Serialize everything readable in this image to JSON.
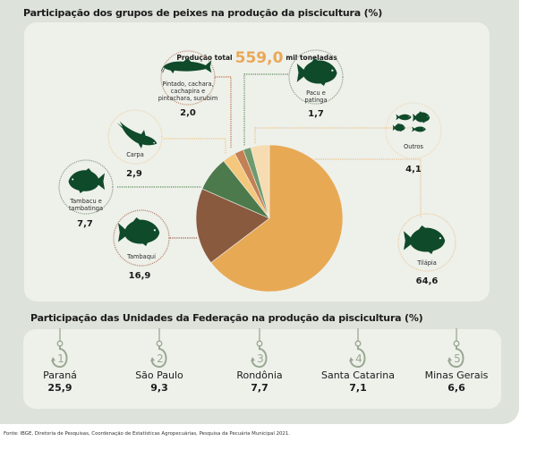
{
  "chart_data": [
    {
      "type": "pie",
      "title": "Participação dos grupos de peixes na produção da piscicultura (%)",
      "total_label": "Produção total",
      "total_value": "559,0",
      "total_unit": "mil toneladas",
      "slices": [
        {
          "name": "Tilápia",
          "value": 64.6,
          "value_label": "64,6",
          "color": "#e8a955",
          "icon": "tilapia-fish-icon"
        },
        {
          "name": "Tambaqui",
          "value": 16.9,
          "value_label": "16,9",
          "color": "#8a5a3e",
          "icon": "tambaqui-fish-icon"
        },
        {
          "name": "Tambacu e tambatinga",
          "value": 7.7,
          "value_label": "7,7",
          "color": "#4d7a4c",
          "icon": "tambacu-fish-icon"
        },
        {
          "name": "Carpa",
          "value": 2.9,
          "value_label": "2,9",
          "color": "#f4c77c",
          "icon": "carp-fish-icon"
        },
        {
          "name": "Pintado, cachara, cachapira e pintachara, surubim",
          "value": 2.0,
          "value_label": "2,0",
          "color": "#c47f54",
          "icon": "catfish-icon"
        },
        {
          "name": "Pacu e patinga",
          "value": 1.7,
          "value_label": "1,7",
          "color": "#6f9a6c",
          "icon": "pacu-fish-icon"
        },
        {
          "name": "Outros",
          "value": 4.1,
          "value_label": "4,1",
          "color": "#f6dcb0",
          "icon": "other-fish-icon"
        }
      ]
    },
    {
      "type": "table",
      "title": "Participação das Unidades da Federação na produção da piscicultura (%)",
      "rows": [
        {
          "rank": "1",
          "name": "Paraná",
          "value": "25,9"
        },
        {
          "rank": "2",
          "name": "São Paulo",
          "value": "9,3"
        },
        {
          "rank": "3",
          "name": "Rondônia",
          "value": "7,7"
        },
        {
          "rank": "4",
          "name": "Santa Catarina",
          "value": "7,1"
        },
        {
          "rank": "5",
          "name": "Minas Gerais",
          "value": "6,6"
        }
      ]
    }
  ],
  "colors": {
    "panel": "#dde2da",
    "inner_panel": "#eef0ea",
    "accent": "#e9a857",
    "fish": "#0f4a2a",
    "hook": "#9aa893"
  },
  "footer": "Fonte: IBGE, Diretoria de Pesquisas, Coordenação de Estatísticas Agropecuárias, Pesquisa da Pecuária Municipal 2021."
}
